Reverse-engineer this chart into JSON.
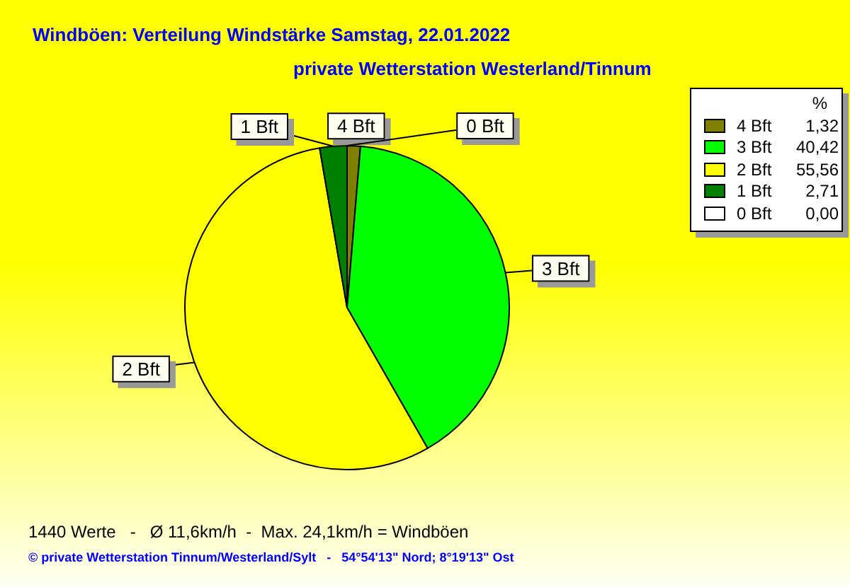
{
  "chart_data": {
    "type": "pie",
    "title": "Windböen: Verteilung Windstärke  Samstag, 22.01.2022",
    "subtitle": "private Wetterstation Westerland/Tinnum",
    "categories": [
      "4 Bft",
      "3 Bft",
      "2 Bft",
      "1 Bft",
      "0 Bft"
    ],
    "values": [
      1.32,
      40.42,
      55.56,
      2.71,
      0.0
    ],
    "colors": [
      "#808000",
      "#00ff00",
      "#ffff00",
      "#008000",
      "#ffffff"
    ],
    "value_labels": [
      "1,32",
      "40,42",
      "55,56",
      "2,71",
      "0,00"
    ],
    "legend": "top right",
    "legend_title": "%",
    "annotations": [
      "1440 Werte   -   Ø 11,6km/h  -  Max. 24,1km/h = Windböen",
      "© private Wetterstation Tinnum/Westerland/Sylt   -   54°54'13\" Nord; 8°19'13\" Ost"
    ]
  }
}
